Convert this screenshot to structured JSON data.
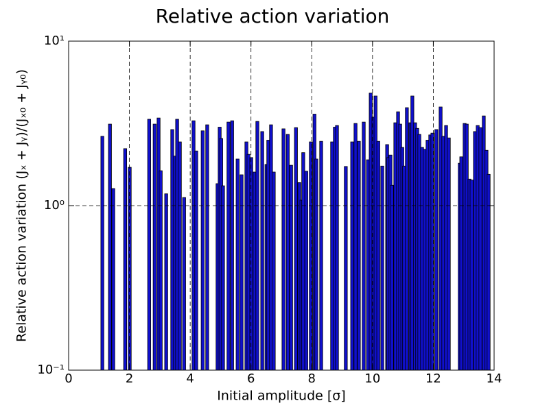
{
  "chart_data": {
    "type": "bar",
    "title": "Relative action variation",
    "x_label": "Initial amplitude [σ]",
    "y_label": "Relative action variation (Jₓ + Jᵧ)/(Jₓ₀ + Jᵧ₀)",
    "color": "#1010cc",
    "log_y": true,
    "grid": true,
    "xlim": [
      0,
      14
    ],
    "xticks": [
      0,
      2,
      4,
      6,
      8,
      10,
      12,
      14
    ],
    "ylim": [
      0.1,
      10
    ],
    "yticks": [
      {
        "value": 0.1,
        "label": "10⁻¹"
      },
      {
        "value": 1,
        "label": "10⁰"
      },
      {
        "value": 10,
        "label": "10¹"
      }
    ],
    "x": [
      1.06,
      1.31,
      1.42,
      1.81,
      1.96,
      2.6,
      2.78,
      2.91,
      2.98,
      3.16,
      3.36,
      3.45,
      3.52,
      3.61,
      3.75,
      4.06,
      4.15,
      4.36,
      4.51,
      4.85,
      4.92,
      4.97,
      5.03,
      5.21,
      5.33,
      5.51,
      5.64,
      5.8,
      5.87,
      5.96,
      6.07,
      6.16,
      6.32,
      6.46,
      6.52,
      6.61,
      6.7,
      7.02,
      7.16,
      7.27,
      7.43,
      7.54,
      7.61,
      7.67,
      7.77,
      7.92,
      8.04,
      8.1,
      8.26,
      8.62,
      8.71,
      8.78,
      9.07,
      9.28,
      9.39,
      9.5,
      9.66,
      9.8,
      9.89,
      9.98,
      10.05,
      10.14,
      10.27,
      10.43,
      10.47,
      10.54,
      10.59,
      10.7,
      10.79,
      10.86,
      10.93,
      10.99,
      11.08,
      11.2,
      11.26,
      11.35,
      11.42,
      11.49,
      11.58,
      11.67,
      11.76,
      11.85,
      11.92,
      12.05,
      12.19,
      12.28,
      12.37,
      12.46,
      12.82,
      12.87,
      12.98,
      13.05,
      13.14,
      13.21,
      13.32,
      13.41,
      13.5,
      13.61,
      13.7,
      13.77
    ],
    "values": [
      2.64,
      3.13,
      1.27,
      2.22,
      1.71,
      3.35,
      3.13,
      3.41,
      1.63,
      1.18,
      2.9,
      2.0,
      3.35,
      2.44,
      1.12,
      3.28,
      2.15,
      2.85,
      3.1,
      1.36,
      3.0,
      2.56,
      1.32,
      3.22,
      3.28,
      1.92,
      1.54,
      2.44,
      2.05,
      1.96,
      1.6,
      3.25,
      2.82,
      1.78,
      2.5,
      3.1,
      1.6,
      2.93,
      2.71,
      1.76,
      2.98,
      1.38,
      1.08,
      2.1,
      1.62,
      2.44,
      3.6,
      1.92,
      2.46,
      2.44,
      3.0,
      3.07,
      1.73,
      2.44,
      3.16,
      2.46,
      3.22,
      1.9,
      4.83,
      3.45,
      4.64,
      2.46,
      1.74,
      2.35,
      1.96,
      2.03,
      1.33,
      3.19,
      3.72,
      3.13,
      2.26,
      1.74,
      3.94,
      3.19,
      4.64,
      3.19,
      2.95,
      2.71,
      2.26,
      2.2,
      2.5,
      2.69,
      2.76,
      2.9,
      3.98,
      2.64,
      3.07,
      2.58,
      1.81,
      1.98,
      3.16,
      3.13,
      1.45,
      1.43,
      2.82,
      3.07,
      2.98,
      3.51,
      2.17,
      1.55
    ]
  }
}
